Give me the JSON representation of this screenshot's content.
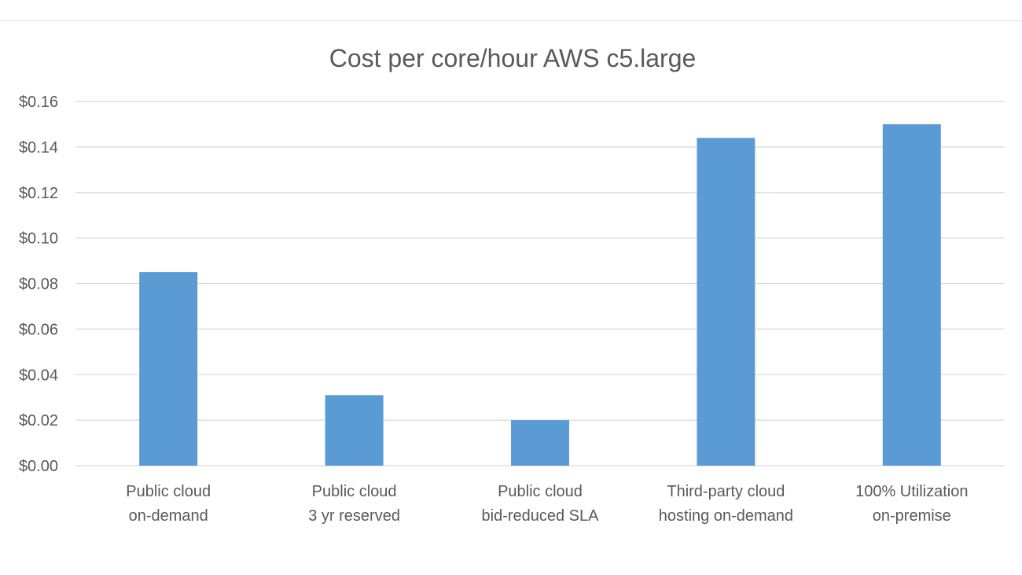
{
  "chart_data": {
    "type": "bar",
    "title": "Cost per core/hour AWS c5.large",
    "xlabel": "",
    "ylabel": "",
    "ylim": [
      0,
      0.16
    ],
    "y_ticks": [
      "$0.00",
      "$0.02",
      "$0.04",
      "$0.06",
      "$0.08",
      "$0.10",
      "$0.12",
      "$0.14",
      "$0.16"
    ],
    "y_tick_values": [
      0,
      0.02,
      0.04,
      0.06,
      0.08,
      0.1,
      0.12,
      0.14,
      0.16
    ],
    "categories": [
      [
        "Public cloud",
        "on-demand"
      ],
      [
        "Public cloud",
        "3 yr reserved"
      ],
      [
        "Public cloud",
        "bid-reduced SLA"
      ],
      [
        "Third-party cloud",
        "hosting on-demand"
      ],
      [
        "100% Utilization",
        "on-premise"
      ]
    ],
    "values": [
      0.085,
      0.031,
      0.02,
      0.144,
      0.15
    ],
    "grid": true,
    "legend": "none",
    "colors": {
      "bar": "#5b9bd5",
      "grid": "#d9d9d9",
      "text": "#595959"
    }
  }
}
